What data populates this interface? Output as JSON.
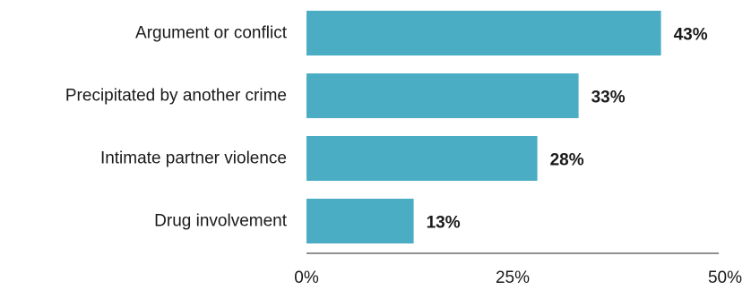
{
  "chart_data": {
    "type": "bar",
    "orientation": "horizontal",
    "categories": [
      "Argument or conflict",
      "Precipitated by another crime",
      "Intimate partner violence",
      "Drug involvement"
    ],
    "values": [
      43,
      33,
      28,
      13
    ],
    "value_labels": [
      "43%",
      "33%",
      "28%",
      "13%"
    ],
    "xlim": [
      0,
      50
    ],
    "xticks": [
      0,
      25,
      50
    ],
    "xtick_labels": [
      "0%",
      "25%",
      "50%"
    ],
    "bar_color": "#4badc4",
    "grid": false
  }
}
